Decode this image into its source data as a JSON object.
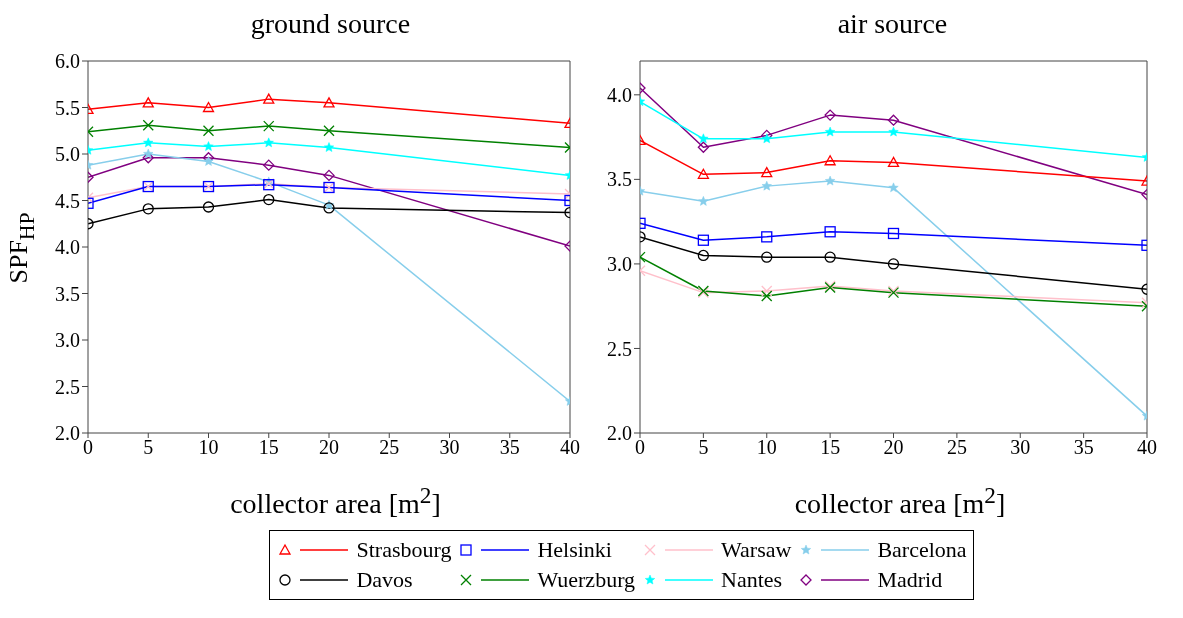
{
  "chart_data": [
    {
      "type": "line",
      "title": "ground source",
      "xlabel": "collector area [m$^{2}$]",
      "ylabel": "SPF$_{HP}$",
      "x": [
        0,
        5,
        10,
        15,
        20,
        40
      ],
      "xlim": [
        0,
        40
      ],
      "xticks": [
        0,
        5,
        10,
        15,
        20,
        25,
        30,
        35,
        40
      ],
      "ylim": [
        2,
        6
      ],
      "yticks": [
        {
          "value": 2,
          "label": "2.0"
        },
        {
          "value": 2.5,
          "label": "2.5"
        },
        {
          "value": 3,
          "label": "3.0"
        },
        {
          "value": 3.5,
          "label": "3.5"
        },
        {
          "value": 4,
          "label": "4.0"
        },
        {
          "value": 4.5,
          "label": "4.5"
        },
        {
          "value": 5,
          "label": "5.0"
        },
        {
          "value": 5.5,
          "label": "5.5"
        },
        {
          "value": 6,
          "label": "6.0"
        }
      ],
      "grid": false,
      "legend": "bottom",
      "series": [
        {
          "name": "Strasbourg",
          "color": "#ff0000",
          "marker": "triangle",
          "values": [
            5.48,
            5.55,
            5.5,
            5.59,
            5.55,
            5.33
          ]
        },
        {
          "name": "Davos",
          "color": "#000000",
          "marker": "circle",
          "values": [
            4.25,
            4.41,
            4.43,
            4.51,
            4.42,
            4.37
          ]
        },
        {
          "name": "Helsinki",
          "color": "#0000ff",
          "marker": "square",
          "values": [
            4.47,
            4.65,
            4.65,
            4.67,
            4.64,
            4.5
          ]
        },
        {
          "name": "Wuerzburg",
          "color": "#008000",
          "marker": "cross",
          "values": [
            5.24,
            5.31,
            5.25,
            5.3,
            5.25,
            5.07
          ]
        },
        {
          "name": "Warsaw",
          "color": "#ffc0cb",
          "marker": "cross",
          "values": [
            4.53,
            4.65,
            4.65,
            4.68,
            4.64,
            4.57
          ]
        },
        {
          "name": "Nantes",
          "color": "#00ffff",
          "marker": "star",
          "values": [
            5.04,
            5.12,
            5.08,
            5.12,
            5.07,
            4.77
          ]
        },
        {
          "name": "Barcelona",
          "color": "#87ceeb",
          "marker": "star",
          "values": [
            4.88,
            5.0,
            4.92,
            4.7,
            4.45,
            2.34
          ]
        },
        {
          "name": "Madrid",
          "color": "#800080",
          "marker": "diamond",
          "values": [
            4.75,
            4.96,
            4.96,
            4.88,
            4.77,
            4.01
          ]
        }
      ]
    },
    {
      "type": "line",
      "title": "air source",
      "xlabel": "collector area [m$^{2}$]",
      "x": [
        0,
        5,
        10,
        15,
        20,
        40
      ],
      "xlim": [
        0,
        40
      ],
      "xticks": [
        0,
        5,
        10,
        15,
        20,
        25,
        30,
        35,
        40
      ],
      "ylim": [
        2,
        4.2
      ],
      "yticks": [
        {
          "value": 2,
          "label": "2.0"
        },
        {
          "value": 2.5,
          "label": "2.5"
        },
        {
          "value": 3,
          "label": "3.0"
        },
        {
          "value": 3.5,
          "label": "3.5"
        },
        {
          "value": 4,
          "label": "4.0"
        }
      ],
      "grid": false,
      "legend": "bottom",
      "series": [
        {
          "color": "#ff0000",
          "marker": "triangle",
          "values": [
            3.73,
            3.53,
            3.54,
            3.61,
            3.6,
            3.49
          ]
        },
        {
          "color": "#000000",
          "marker": "circle",
          "values": [
            3.16,
            3.05,
            3.04,
            3.04,
            3.0,
            2.85
          ]
        },
        {
          "color": "#0000ff",
          "marker": "square",
          "values": [
            3.24,
            3.14,
            3.16,
            3.19,
            3.18,
            3.11
          ]
        },
        {
          "color": "#008000",
          "marker": "cross",
          "values": [
            3.04,
            2.84,
            2.81,
            2.86,
            2.83,
            2.75
          ]
        },
        {
          "color": "#ffc0cb",
          "marker": "cross",
          "values": [
            2.96,
            2.83,
            2.84,
            2.87,
            2.84,
            2.77
          ]
        },
        {
          "color": "#00ffff",
          "marker": "star",
          "values": [
            3.96,
            3.74,
            3.74,
            3.78,
            3.78,
            3.63
          ]
        },
        {
          "color": "#87ceeb",
          "marker": "star",
          "values": [
            3.43,
            3.37,
            3.46,
            3.49,
            3.45,
            2.1
          ]
        },
        {
          "color": "#800080",
          "marker": "diamond",
          "values": [
            4.04,
            3.69,
            3.76,
            3.88,
            3.85,
            3.41
          ]
        }
      ]
    }
  ]
}
